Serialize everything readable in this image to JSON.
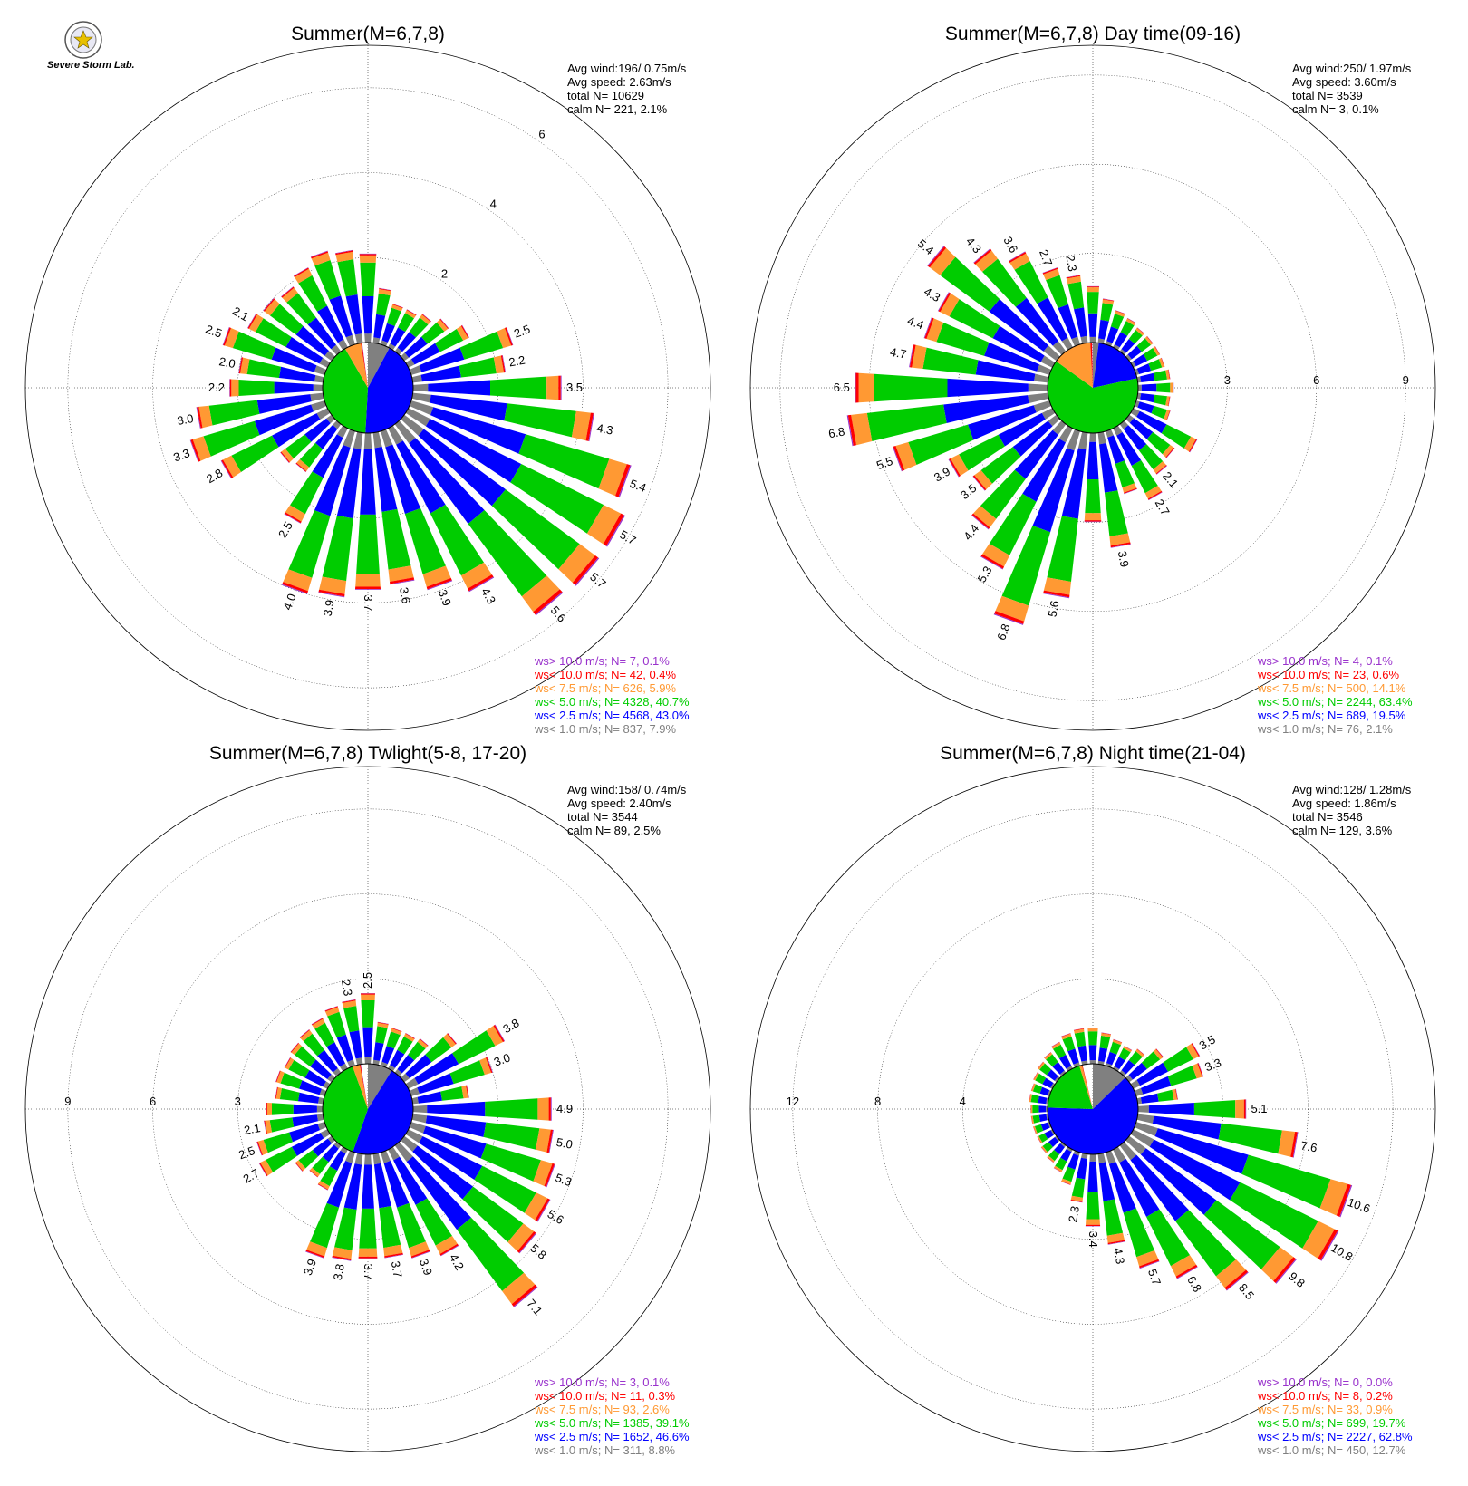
{
  "logo": {
    "text": "Severe Storm Lab."
  },
  "colors": {
    "ws_gt10": "#9932cc",
    "ws_lt10": "#ff0000",
    "ws_lt75": "#ff9933",
    "ws_lt5": "#00cc00",
    "ws_lt25": "#0000ff",
    "ws_lt1": "#808080"
  },
  "chart_data": [
    {
      "type": "windrose",
      "title": "Summer(M=6,7,8)",
      "stats": [
        "Avg wind:196/ 0.75m/s",
        "Avg speed: 2.63m/s",
        "total N=      10629",
        "calm N=    221,   2.1%"
      ],
      "ring_values": [
        2,
        4,
        6
      ],
      "ring_labels": [
        "2",
        "4",
        "6"
      ],
      "max": 7,
      "legend": [
        "ws> 10.0 m/s; N=     7,  0.1%",
        "ws< 10.0 m/s; N=    42,  0.4%",
        "ws<  7.5 m/s; N=   626,  5.9%",
        "ws<  5.0 m/s; N=  4328, 40.7%",
        "ws<  2.5 m/s; N=  4568, 43.0%",
        "ws<  1.0 m/s; N=   837,  7.9%"
      ],
      "speed_pie": [
        7.9,
        43.0,
        40.7,
        5.9,
        0.4,
        0.1
      ],
      "directions": [
        {
          "dir": 0,
          "total": 2.1
        },
        {
          "dir": 10,
          "total": 1.3
        },
        {
          "dir": 20,
          "total": 1.0
        },
        {
          "dir": 30,
          "total": 1.0
        },
        {
          "dir": 40,
          "total": 1.1
        },
        {
          "dir": 50,
          "total": 1.3
        },
        {
          "dir": 60,
          "total": 1.6
        },
        {
          "dir": 70,
          "total": 2.5,
          "label": "2.5"
        },
        {
          "dir": 80,
          "total": 2.2,
          "label": "2.2"
        },
        {
          "dir": 90,
          "total": 3.5,
          "label": "3.5"
        },
        {
          "dir": 100,
          "total": 4.3,
          "label": "4.3"
        },
        {
          "dir": 110,
          "total": 5.4,
          "label": "5.4"
        },
        {
          "dir": 120,
          "total": 5.7,
          "label": "5.7"
        },
        {
          "dir": 130,
          "total": 5.7,
          "label": "5.7"
        },
        {
          "dir": 140,
          "total": 5.6,
          "label": "5.6"
        },
        {
          "dir": 150,
          "total": 4.3,
          "label": "4.3"
        },
        {
          "dir": 160,
          "total": 3.9,
          "label": "3.9"
        },
        {
          "dir": 170,
          "total": 3.6,
          "label": "3.6"
        },
        {
          "dir": 180,
          "total": 3.7,
          "label": "3.7"
        },
        {
          "dir": 190,
          "total": 3.9,
          "label": "3.9"
        },
        {
          "dir": 200,
          "total": 4.0,
          "label": "4.0"
        },
        {
          "dir": 210,
          "total": 2.5,
          "label": "2.5"
        },
        {
          "dir": 220,
          "total": 1.4
        },
        {
          "dir": 230,
          "total": 1.5
        },
        {
          "dir": 240,
          "total": 2.8,
          "label": "2.8"
        },
        {
          "dir": 250,
          "total": 3.3,
          "label": "3.3"
        },
        {
          "dir": 260,
          "total": 3.0,
          "label": "3.0"
        },
        {
          "dir": 270,
          "total": 2.2,
          "label": "2.2"
        },
        {
          "dir": 280,
          "total": 2.0,
          "label": "2.0"
        },
        {
          "dir": 290,
          "total": 2.5,
          "label": "2.5"
        },
        {
          "dir": 300,
          "total": 2.1,
          "label": "2.1"
        },
        {
          "dir": 310,
          "total": 2.0
        },
        {
          "dir": 320,
          "total": 1.9
        },
        {
          "dir": 330,
          "total": 2.1
        },
        {
          "dir": 340,
          "total": 2.3
        },
        {
          "dir": 350,
          "total": 2.2
        }
      ]
    },
    {
      "type": "windrose",
      "title": "Summer(M=6,7,8) Day time(09-16)",
      "stats": [
        "Avg wind:250/ 1.97m/s",
        "Avg speed: 3.60m/s",
        "total N=        3539",
        "calm N=      3,   0.1%"
      ],
      "ring_values": [
        3,
        6,
        9
      ],
      "ring_labels": [
        "3",
        "6",
        "9"
      ],
      "max": 10,
      "legend": [
        "ws> 10.0 m/s; N=     4,  0.1%",
        "ws< 10.0 m/s; N=    23,  0.6%",
        "ws<  7.5 m/s; N=   500, 14.1%",
        "ws<  5.0 m/s; N=  2244, 63.4%",
        "ws<  2.5 m/s; N=   689, 19.5%",
        "ws<  1.0 m/s; N=    76,  2.1%"
      ],
      "speed_pie": [
        2.1,
        19.5,
        63.4,
        14.1,
        0.6,
        0.1
      ],
      "directions": [
        {
          "dir": 0,
          "total": 1.9
        },
        {
          "dir": 10,
          "total": 1.5
        },
        {
          "dir": 20,
          "total": 1.2
        },
        {
          "dir": 30,
          "total": 1.1
        },
        {
          "dir": 40,
          "total": 1.0
        },
        {
          "dir": 50,
          "total": 1.0
        },
        {
          "dir": 60,
          "total": 1.0
        },
        {
          "dir": 70,
          "total": 1.0
        },
        {
          "dir": 80,
          "total": 1.1
        },
        {
          "dir": 90,
          "total": 1.2
        },
        {
          "dir": 100,
          "total": 1.1
        },
        {
          "dir": 110,
          "total": 1.2
        },
        {
          "dir": 120,
          "total": 2.4
        },
        {
          "dir": 130,
          "total": 1.9
        },
        {
          "dir": 140,
          "total": 2.1,
          "label": "2.1"
        },
        {
          "dir": 150,
          "total": 2.7,
          "label": "2.7"
        },
        {
          "dir": 160,
          "total": 2.2
        },
        {
          "dir": 170,
          "total": 3.9,
          "label": "3.9"
        },
        {
          "dir": 180,
          "total": 3.0
        },
        {
          "dir": 190,
          "total": 5.6,
          "label": "5.6"
        },
        {
          "dir": 200,
          "total": 6.8,
          "label": "6.8"
        },
        {
          "dir": 210,
          "total": 5.3,
          "label": "5.3"
        },
        {
          "dir": 220,
          "total": 4.4,
          "label": "4.4"
        },
        {
          "dir": 230,
          "total": 3.5,
          "label": "3.5"
        },
        {
          "dir": 240,
          "total": 3.9,
          "label": "3.9"
        },
        {
          "dir": 250,
          "total": 5.5,
          "label": "5.5"
        },
        {
          "dir": 260,
          "total": 6.8,
          "label": "6.8"
        },
        {
          "dir": 270,
          "total": 6.5,
          "label": "6.5"
        },
        {
          "dir": 280,
          "total": 4.7,
          "label": "4.7"
        },
        {
          "dir": 290,
          "total": 4.4,
          "label": "4.4"
        },
        {
          "dir": 300,
          "total": 4.3,
          "label": "4.3"
        },
        {
          "dir": 310,
          "total": 5.4,
          "label": "5.4"
        },
        {
          "dir": 320,
          "total": 4.3,
          "label": "4.3"
        },
        {
          "dir": 330,
          "total": 3.6,
          "label": "3.6"
        },
        {
          "dir": 340,
          "total": 2.7,
          "label": "2.7"
        },
        {
          "dir": 350,
          "total": 2.3,
          "label": "2.3"
        }
      ]
    },
    {
      "type": "windrose",
      "title": "Summer(M=6,7,8) Twlight(5-8, 17-20)",
      "stats": [
        "Avg wind:158/ 0.74m/s",
        "Avg speed: 2.40m/s",
        "total N=        3544",
        "calm N=     89,   2.5%"
      ],
      "ring_values": [
        3,
        6,
        9
      ],
      "ring_labels": [
        "3",
        "6",
        "9"
      ],
      "max": 10.5,
      "legend": [
        "ws> 10.0 m/s; N=     3,  0.1%",
        "ws< 10.0 m/s; N=    11,  0.3%",
        "ws<  7.5 m/s; N=    93,  2.6%",
        "ws<  5.0 m/s; N=  1385, 39.1%",
        "ws<  2.5 m/s; N=  1652, 46.6%",
        "ws<  1.0 m/s; N=   311,  8.8%"
      ],
      "speed_pie": [
        8.8,
        46.6,
        39.1,
        2.6,
        0.3,
        0.1
      ],
      "directions": [
        {
          "dir": 0,
          "total": 2.5,
          "label": "2.5"
        },
        {
          "dir": 10,
          "total": 1.5
        },
        {
          "dir": 20,
          "total": 1.4
        },
        {
          "dir": 30,
          "total": 1.4
        },
        {
          "dir": 40,
          "total": 1.5
        },
        {
          "dir": 50,
          "total": 2.3
        },
        {
          "dir": 60,
          "total": 3.8,
          "label": "3.8"
        },
        {
          "dir": 70,
          "total": 3.0,
          "label": "3.0"
        },
        {
          "dir": 80,
          "total": 2.0
        },
        {
          "dir": 90,
          "total": 4.9,
          "label": "4.9"
        },
        {
          "dir": 100,
          "total": 5.0,
          "label": "5.0"
        },
        {
          "dir": 110,
          "total": 5.3,
          "label": "5.3"
        },
        {
          "dir": 120,
          "total": 5.6,
          "label": "5.6"
        },
        {
          "dir": 130,
          "total": 5.8,
          "label": "5.8"
        },
        {
          "dir": 140,
          "total": 7.1,
          "label": "7.1"
        },
        {
          "dir": 150,
          "total": 4.2,
          "label": "4.2"
        },
        {
          "dir": 160,
          "total": 3.9,
          "label": "3.9"
        },
        {
          "dir": 170,
          "total": 3.7,
          "label": "3.7"
        },
        {
          "dir": 180,
          "total": 3.7,
          "label": "3.7"
        },
        {
          "dir": 190,
          "total": 3.8,
          "label": "3.8"
        },
        {
          "dir": 200,
          "total": 3.9,
          "label": "3.9"
        },
        {
          "dir": 210,
          "total": 1.6
        },
        {
          "dir": 220,
          "total": 1.4
        },
        {
          "dir": 230,
          "total": 1.6
        },
        {
          "dir": 240,
          "total": 2.7,
          "label": "2.7"
        },
        {
          "dir": 250,
          "total": 2.5,
          "label": "2.5"
        },
        {
          "dir": 260,
          "total": 2.1,
          "label": "2.1"
        },
        {
          "dir": 270,
          "total": 2.0
        },
        {
          "dir": 280,
          "total": 1.7
        },
        {
          "dir": 290,
          "total": 1.8
        },
        {
          "dir": 300,
          "total": 1.7
        },
        {
          "dir": 310,
          "total": 1.8
        },
        {
          "dir": 320,
          "total": 1.9
        },
        {
          "dir": 330,
          "total": 2.0
        },
        {
          "dir": 340,
          "total": 2.2
        },
        {
          "dir": 350,
          "total": 2.3,
          "label": "2.3"
        }
      ]
    },
    {
      "type": "windrose",
      "title": "Summer(M=6,7,8) Night time(21-04)",
      "stats": [
        "Avg wind:128/ 1.28m/s",
        "Avg speed: 1.86m/s",
        "total N=        3546",
        "calm N=    129,   3.6%"
      ],
      "ring_values": [
        4,
        8,
        12
      ],
      "ring_labels": [
        "4",
        "8",
        "12"
      ],
      "max": 14,
      "legend": [
        "ws> 10.0 m/s; N=     0,  0.0%",
        "ws< 10.0 m/s; N=     8,  0.2%",
        "ws<  7.5 m/s; N=    33,  0.9%",
        "ws<  5.0 m/s; N=   699, 19.7%",
        "ws<  2.5 m/s; N=  2227, 62.8%",
        "ws<  1.0 m/s; N=   450, 12.7%"
      ],
      "speed_pie": [
        12.7,
        62.8,
        19.7,
        0.9,
        0.2,
        0.0
      ],
      "directions": [
        {
          "dir": 0,
          "total": 1.7
        },
        {
          "dir": 10,
          "total": 1.5
        },
        {
          "dir": 20,
          "total": 1.3
        },
        {
          "dir": 30,
          "total": 1.2
        },
        {
          "dir": 40,
          "total": 1.4
        },
        {
          "dir": 50,
          "total": 2.0
        },
        {
          "dir": 60,
          "total": 3.5,
          "label": "3.5"
        },
        {
          "dir": 70,
          "total": 3.3,
          "label": "3.3"
        },
        {
          "dir": 80,
          "total": 1.9
        },
        {
          "dir": 90,
          "total": 5.1,
          "label": "5.1"
        },
        {
          "dir": 100,
          "total": 7.6,
          "label": "7.6"
        },
        {
          "dir": 110,
          "total": 10.6,
          "label": "10.6"
        },
        {
          "dir": 120,
          "total": 10.8,
          "label": "10.8"
        },
        {
          "dir": 130,
          "total": 9.8,
          "label": "9.8"
        },
        {
          "dir": 140,
          "total": 8.5,
          "label": "8.5"
        },
        {
          "dir": 150,
          "total": 6.8,
          "label": "6.8"
        },
        {
          "dir": 160,
          "total": 5.7,
          "label": "5.7"
        },
        {
          "dir": 170,
          "total": 4.3,
          "label": "4.3"
        },
        {
          "dir": 180,
          "total": 3.4,
          "label": "3.4"
        },
        {
          "dir": 190,
          "total": 2.3,
          "label": "2.3"
        },
        {
          "dir": 200,
          "total": 1.6
        },
        {
          "dir": 210,
          "total": 1.2
        },
        {
          "dir": 220,
          "total": 1.0
        },
        {
          "dir": 230,
          "total": 0.9
        },
        {
          "dir": 240,
          "total": 0.8
        },
        {
          "dir": 250,
          "total": 0.8
        },
        {
          "dir": 260,
          "total": 0.8
        },
        {
          "dir": 270,
          "total": 0.8
        },
        {
          "dir": 280,
          "total": 0.9
        },
        {
          "dir": 290,
          "total": 0.9
        },
        {
          "dir": 300,
          "total": 1.0
        },
        {
          "dir": 310,
          "total": 1.1
        },
        {
          "dir": 320,
          "total": 1.2
        },
        {
          "dir": 330,
          "total": 1.4
        },
        {
          "dir": 340,
          "total": 1.6
        },
        {
          "dir": 350,
          "total": 1.7
        }
      ]
    }
  ]
}
